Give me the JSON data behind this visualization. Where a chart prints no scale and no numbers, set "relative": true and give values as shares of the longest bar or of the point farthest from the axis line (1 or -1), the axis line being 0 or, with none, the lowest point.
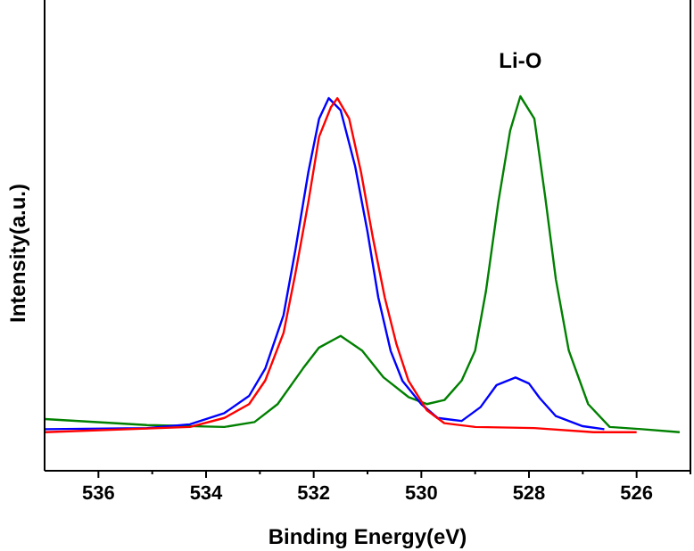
{
  "chart_data": {
    "type": "line",
    "relative": true,
    "xlabel": "Binding Energy(eV)",
    "ylabel": "Intensity(a.u.)",
    "xlim": [
      537,
      525
    ],
    "xticks": [
      536,
      {
        "value": 535,
        "label": null
      },
      534,
      {
        "value": 533,
        "label": null
      },
      532,
      {
        "value": 531,
        "label": null
      },
      530,
      {
        "value": 529,
        "label": null
      },
      528,
      {
        "value": 527,
        "label": null
      },
      526,
      {
        "value": 525,
        "label": null
      }
    ],
    "annotations": [
      "Li-O"
    ],
    "marker": "none",
    "line_style": "solid",
    "grid": false,
    "series": [
      {
        "color": "#008000",
        "x": [
          537,
          535.1,
          533.66,
          533.1,
          532.67,
          532.2,
          531.9,
          531.5,
          531.1,
          530.7,
          530.24,
          529.9,
          529.57,
          529.25,
          529.0,
          528.8,
          528.57,
          528.35,
          528.16,
          527.9,
          527.7,
          527.5,
          527.26,
          526.9,
          526.5,
          525.9,
          525.2
        ],
        "values": [
          0.138,
          0.122,
          0.117,
          0.13,
          0.178,
          0.273,
          0.329,
          0.36,
          0.321,
          0.249,
          0.197,
          0.178,
          0.189,
          0.241,
          0.321,
          0.479,
          0.717,
          0.908,
          1.0,
          0.94,
          0.733,
          0.511,
          0.321,
          0.178,
          0.117,
          0.111,
          0.103
        ]
      },
      {
        "color": "#0000ff",
        "x": [
          537,
          535.1,
          534.3,
          533.66,
          533.2,
          532.9,
          532.56,
          532.34,
          532.1,
          531.9,
          531.72,
          531.5,
          531.23,
          531.0,
          530.8,
          530.57,
          530.35,
          530.0,
          529.7,
          529.25,
          528.9,
          528.6,
          528.25,
          528.0,
          527.8,
          527.5,
          527.0,
          526.6
        ],
        "values": [
          0.111,
          0.114,
          0.124,
          0.154,
          0.2,
          0.273,
          0.416,
          0.59,
          0.797,
          0.94,
          0.995,
          0.963,
          0.813,
          0.638,
          0.463,
          0.32,
          0.24,
          0.178,
          0.141,
          0.133,
          0.17,
          0.229,
          0.249,
          0.233,
          0.194,
          0.146,
          0.119,
          0.111
        ]
      },
      {
        "color": "#ff0000",
        "x": [
          537,
          534.3,
          533.66,
          533.2,
          532.9,
          532.56,
          532.34,
          532.1,
          531.9,
          531.68,
          531.56,
          531.34,
          531.12,
          530.9,
          530.68,
          530.46,
          530.24,
          529.9,
          529.57,
          529.0,
          527.9,
          526.8,
          526.0
        ],
        "values": [
          0.103,
          0.117,
          0.141,
          0.178,
          0.241,
          0.368,
          0.527,
          0.717,
          0.892,
          0.971,
          0.995,
          0.94,
          0.797,
          0.622,
          0.463,
          0.337,
          0.241,
          0.162,
          0.127,
          0.117,
          0.114,
          0.103,
          0.103
        ]
      }
    ]
  }
}
